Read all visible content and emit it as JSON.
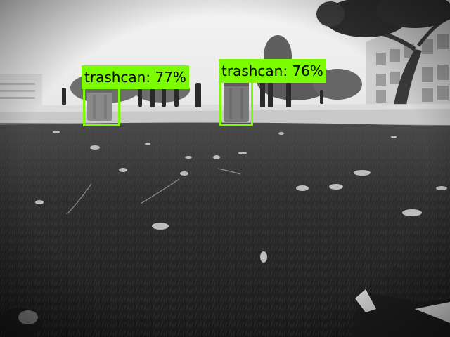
{
  "detections": [
    {
      "class": "trashcan",
      "score": "77%",
      "label": "trashcan: 77%",
      "color": "#7CFC00"
    },
    {
      "class": "trashcan",
      "score": "76%",
      "label": "trashcan: 76%",
      "color": "#7CFC00"
    }
  ]
}
